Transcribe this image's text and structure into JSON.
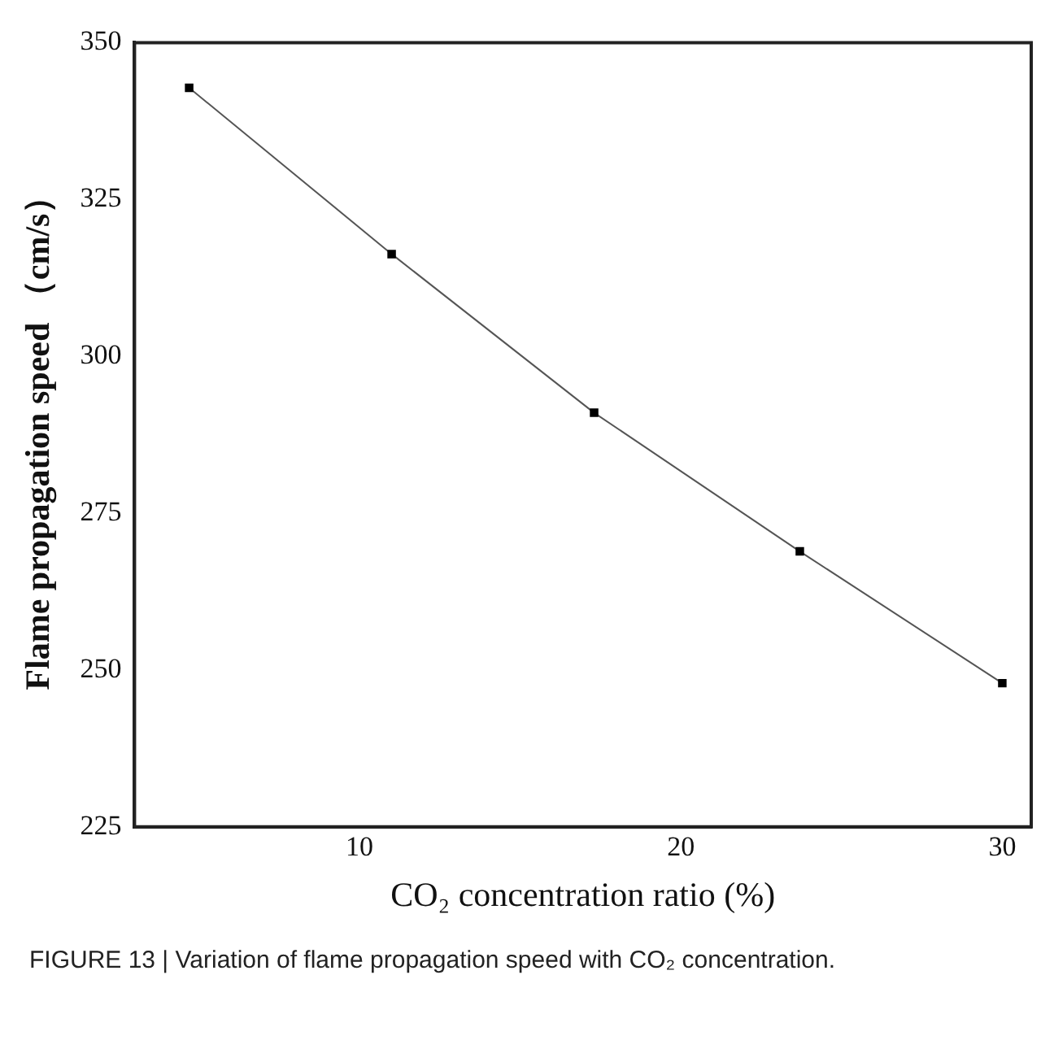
{
  "chart_data": {
    "type": "line",
    "xlabel": "CO₂ concentration ratio (%)",
    "ylabel": "Flame propagation speed （cm/s）",
    "x": [
      4.7,
      11,
      17.3,
      23.7,
      30
    ],
    "series": [
      {
        "color": "#000000",
        "values": [
          342.8,
          316.3,
          291.0,
          268.9,
          247.9
        ]
      }
    ],
    "xlim": [
      3,
      30.9
    ],
    "xticks": [
      10,
      20,
      30
    ],
    "ylim": [
      225,
      350
    ],
    "yticks": [
      225,
      250,
      275,
      300,
      325,
      350
    ],
    "grid": false,
    "legend": false,
    "marker": "square",
    "line_style": "solid",
    "annotations": [
      "FIGURE 13 | Variation of flame propagation speed with CO₂ concentration."
    ]
  }
}
